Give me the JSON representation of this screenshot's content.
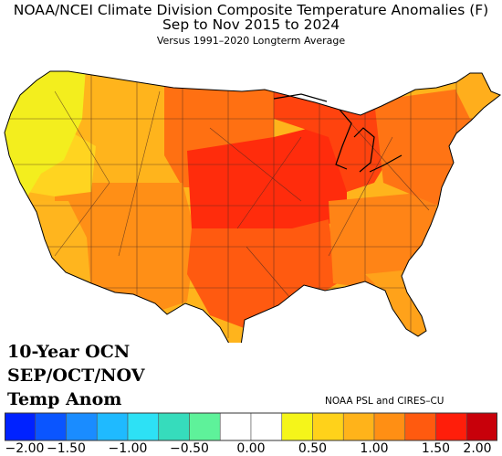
{
  "header": {
    "title": "NOAA/NCEI Climate Division Composite Temperature Anomalies (F)",
    "period": "Sep to Nov 2015 to 2024",
    "baseline": "Versus 1991–2020 Longterm Average"
  },
  "overlay": {
    "line1": "10-Year OCN",
    "line2": "SEP/OCT/NOV",
    "line3": "Temp Anom"
  },
  "credit": "NOAA PSL and CIRES–CU",
  "legend": {
    "colors": [
      "#0022ff",
      "#0a55ff",
      "#1a8cff",
      "#1fbaff",
      "#2de1f5",
      "#36dcbc",
      "#5ef29a",
      "#ffffff",
      "#ffffff",
      "#f5f51a",
      "#ffd21a",
      "#ffb31a",
      "#ff8f14",
      "#ff5a0f",
      "#ff1e0a",
      "#c8000a"
    ],
    "tick_labels": [
      "−2.00",
      "−1.50",
      "−1.00",
      "−0.50",
      "0.00",
      "0.50",
      "1.00",
      "1.50",
      "2.00"
    ],
    "range": [
      -2.0,
      2.0
    ],
    "step": 0.25
  },
  "regions": [
    {
      "name": "Pacific Northwest coast",
      "anomaly": 0.5,
      "color": "#f3ee1e"
    },
    {
      "name": "Northern California / Great Basin",
      "anomaly": 0.75,
      "color": "#ffd420"
    },
    {
      "name": "Southern California",
      "anomaly": 1.0,
      "color": "#ffb51e"
    },
    {
      "name": "Northern Rockies",
      "anomaly": 0.9,
      "color": "#ffb41c"
    },
    {
      "name": "Southwest",
      "anomaly": 1.3,
      "color": "#ff8f16"
    },
    {
      "name": "Northern Plains",
      "anomaly": 1.5,
      "color": "#ff7012"
    },
    {
      "name": "Central Plains / Upper Midwest",
      "anomaly": 1.9,
      "color": "#ff2c0c"
    },
    {
      "name": "Great Lakes",
      "anomaly": 1.7,
      "color": "#ff430e"
    },
    {
      "name": "Texas / Lower Mississippi",
      "anomaly": 1.6,
      "color": "#ff5a10"
    },
    {
      "name": "Southeast",
      "anomaly": 1.3,
      "color": "#ff8416"
    },
    {
      "name": "Florida",
      "anomaly": 1.1,
      "color": "#ffa21a"
    },
    {
      "name": "Northeast",
      "anomaly": 1.4,
      "color": "#ff7414"
    },
    {
      "name": "Maine",
      "anomaly": 1.0,
      "color": "#ffae1c"
    }
  ]
}
